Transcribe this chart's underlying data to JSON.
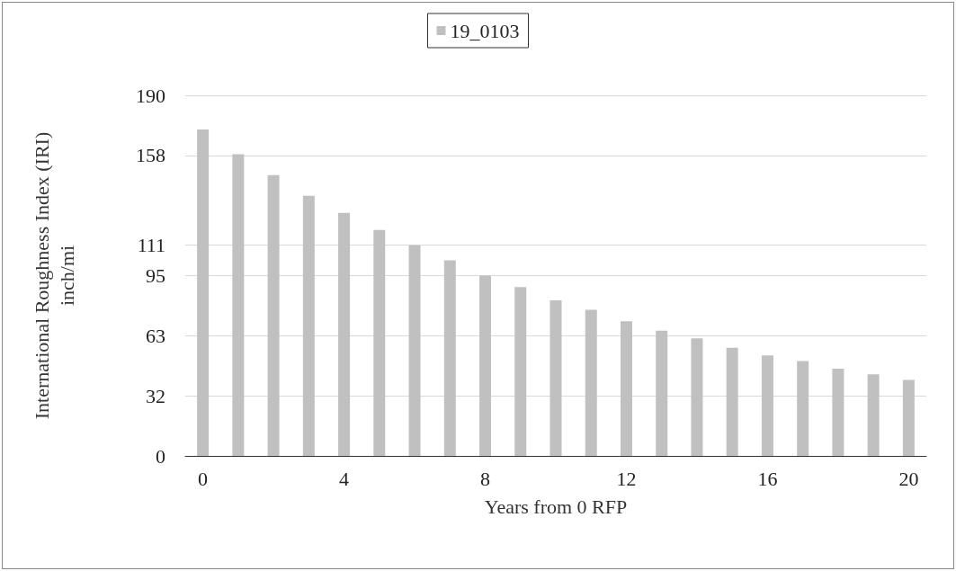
{
  "chart_data": {
    "type": "bar",
    "xlabel": "Years from 0 RFP",
    "ylabel": "International Roughness Index (IRI)\ninch/mi",
    "x": [
      0,
      1,
      2,
      3,
      4,
      5,
      6,
      7,
      8,
      9,
      10,
      11,
      12,
      13,
      14,
      15,
      16,
      17,
      18,
      19,
      20
    ],
    "series": [
      {
        "name": "19_0103",
        "color": "#c0c0c0",
        "values": [
          172,
          159,
          148,
          137,
          128,
          119,
          111,
          103,
          95,
          89,
          82,
          77,
          71,
          66,
          62,
          57,
          53,
          50,
          46,
          43,
          40
        ]
      }
    ],
    "xlim": [
      -0.5,
      20.5
    ],
    "xticks": [
      0,
      4,
      8,
      12,
      16,
      20
    ],
    "ylim": [
      0,
      190
    ],
    "yticks": [
      0,
      {
        "value": 31.67,
        "label": "32"
      },
      {
        "value": 63.33,
        "label": "63"
      },
      95,
      111,
      {
        "value": 158.33,
        "label": "158"
      },
      190
    ],
    "grid": "y",
    "legend": "top"
  }
}
